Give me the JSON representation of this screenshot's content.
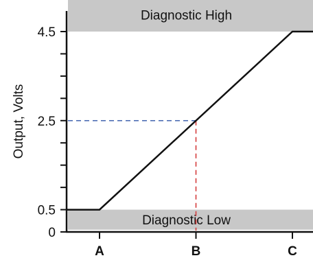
{
  "chart_data": {
    "type": "line",
    "ylabel": "Output, Volts",
    "xlabel": "",
    "categories": [
      "A",
      "B",
      "C"
    ],
    "y_tick_labels": [
      "0",
      "0.5",
      "2.5",
      "4.5"
    ],
    "y_ticks_labeled": [
      0,
      0.5,
      2.5,
      4.5
    ],
    "y_ticks_minor": [
      1,
      1.5,
      2,
      3,
      3.5,
      4
    ],
    "ylim": [
      0,
      5.25
    ],
    "xlim": [
      0.26,
      3.3
    ],
    "series": [
      {
        "x": [
          0.26,
          1,
          3,
          3.25
        ],
        "y": [
          0.5,
          0.5,
          4.5,
          4.5
        ],
        "color": "#111111"
      }
    ],
    "bands": [
      {
        "label": "Diagnostic High",
        "y_from": 4.5,
        "y_to": 5.25,
        "color": "#c8c8c8"
      },
      {
        "label": "Diagnostic Low",
        "y_from": 0.05,
        "y_to": 0.5,
        "color": "#c8c8c8"
      }
    ],
    "guides": {
      "point": {
        "x": 2,
        "y": 2.5
      },
      "horizontal_color": "#4f6fb5",
      "vertical_color": "#d43c3c"
    }
  }
}
